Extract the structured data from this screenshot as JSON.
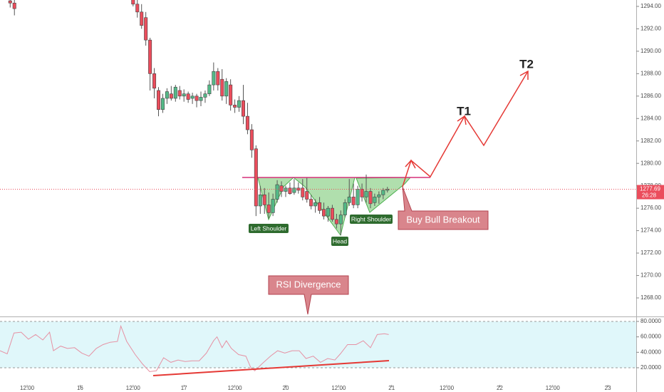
{
  "chart_data": [
    {
      "type": "candlestick",
      "x": [
        -29,
        -28,
        0,
        1,
        2,
        3,
        4,
        5,
        6,
        7,
        8,
        9,
        10,
        11,
        12,
        13,
        14,
        15,
        16,
        17,
        18,
        19,
        20,
        21,
        22,
        23,
        24,
        25,
        26,
        27,
        28,
        29,
        30,
        31,
        32,
        33,
        34,
        35,
        36,
        37,
        38,
        39,
        40,
        41,
        42,
        43,
        44,
        45,
        46,
        47,
        48,
        49,
        50,
        51,
        52,
        53,
        54,
        55,
        56,
        57,
        58,
        59,
        60
      ],
      "open": [
        1294.5,
        1294.3,
        1294.6,
        1294.2,
        1293.5,
        1293,
        1291,
        1288,
        1286.5,
        1284.8,
        1285.8,
        1286.2,
        1285.8,
        1286.5,
        1286,
        1286.2,
        1285.8,
        1286,
        1285.6,
        1285.9,
        1286.2,
        1287,
        1288.2,
        1287.5,
        1286,
        1287,
        1285.2,
        1285,
        1285.6,
        1284.2,
        1283,
        1281.3,
        1276.2,
        1277.2,
        1276.3,
        1275.6,
        1276.8,
        1278,
        1277.5,
        1277.8,
        1277.4,
        1277.8,
        1277.8,
        1277.5,
        1276.8,
        1276.2,
        1276.5,
        1275.9,
        1275.3,
        1276,
        1275,
        1274.6,
        1275.4,
        1276.5,
        1277,
        1276.3,
        1277.7,
        1277,
        1277.5,
        1276.5,
        1277,
        1277.2,
        1277.6
      ],
      "high": [
        1295,
        1294.8,
        1295,
        1294.6,
        1294.2,
        1293.5,
        1291.2,
        1288.5,
        1286.8,
        1286.2,
        1286.7,
        1286.9,
        1287,
        1286.9,
        1286.6,
        1286.4,
        1286.3,
        1286.2,
        1286.4,
        1286.5,
        1287.4,
        1289,
        1288.5,
        1288.4,
        1287.6,
        1287.5,
        1285.7,
        1286,
        1287,
        1285.4,
        1283.5,
        1281.6,
        1278,
        1277.8,
        1277.4,
        1277.3,
        1278.5,
        1278.4,
        1278,
        1278.3,
        1278.6,
        1278.3,
        1278.6,
        1278.7,
        1277.2,
        1276.8,
        1277,
        1276.5,
        1276.2,
        1276.3,
        1275.5,
        1275.8,
        1276.8,
        1278.6,
        1278.2,
        1278,
        1278.2,
        1279,
        1277.8,
        1277.3,
        1277.5,
        1277.8,
        1277.9
      ],
      "low": [
        1293.9,
        1293.2,
        1294,
        1293,
        1292,
        1290.5,
        1286.5,
        1285.8,
        1284.2,
        1284.5,
        1285.3,
        1285.6,
        1285.5,
        1285.7,
        1285.5,
        1285.4,
        1285.3,
        1285,
        1285.1,
        1285.4,
        1286,
        1286.5,
        1286.5,
        1285.6,
        1285.3,
        1284.7,
        1284.5,
        1284.6,
        1283.5,
        1282.6,
        1280.5,
        1275.3,
        1275.5,
        1275.5,
        1275.1,
        1275.3,
        1276.5,
        1277,
        1277,
        1277.2,
        1277.2,
        1277.3,
        1276.7,
        1276.5,
        1275.9,
        1275.6,
        1275.5,
        1275,
        1274.8,
        1274.8,
        1274.2,
        1273.6,
        1275.2,
        1276.2,
        1276,
        1276,
        1276.6,
        1276.5,
        1276,
        1276.2,
        1276.4,
        1276.8,
        1277.4
      ],
      "close": [
        1294.3,
        1293.8,
        1294.2,
        1293.5,
        1292.3,
        1291,
        1288,
        1286.7,
        1284.8,
        1285.8,
        1286.4,
        1285.8,
        1286.8,
        1286,
        1286.2,
        1285.7,
        1286,
        1285.6,
        1285.9,
        1286.2,
        1287,
        1288.2,
        1287,
        1286,
        1287.3,
        1285.2,
        1285,
        1285.6,
        1284.2,
        1283,
        1281.2,
        1276.2,
        1277.2,
        1276.3,
        1275.6,
        1276.8,
        1278.1,
        1277.5,
        1277.8,
        1277.3,
        1277.8,
        1277.6,
        1277,
        1276.8,
        1276.2,
        1276.5,
        1275.8,
        1275.3,
        1276,
        1275,
        1274.6,
        1275.4,
        1276.5,
        1277,
        1276.3,
        1277.7,
        1277,
        1277.5,
        1276.4,
        1277,
        1277.2,
        1277.6,
        1277.7
      ],
      "up_color": "#53b987",
      "down_color": "#eb4d5c",
      "xlim": [
        -31.4,
        118.7
      ],
      "ylim": [
        1266.41,
        1294.57
      ],
      "yticks": [
        {
          "value": 1268,
          "label": "1268.00"
        },
        {
          "value": 1270,
          "label": "1270.00"
        },
        {
          "value": 1272,
          "label": "1272.00"
        },
        {
          "value": 1274,
          "label": "1274.00"
        },
        {
          "value": 1276,
          "label": "1276.00"
        },
        {
          "value": 1278,
          "label": "1278.00"
        },
        {
          "value": 1280,
          "label": "1280.00"
        },
        {
          "value": 1282,
          "label": "1282.00"
        },
        {
          "value": 1284,
          "label": "1284.00"
        },
        {
          "value": 1286,
          "label": "1286.00"
        },
        {
          "value": 1288,
          "label": "1288.00"
        },
        {
          "value": 1290,
          "label": "1290.00"
        },
        {
          "value": 1292,
          "label": "1292.00"
        },
        {
          "value": 1294,
          "label": "1294.00"
        }
      ],
      "last_price": 1277.69,
      "countdown": "26:28",
      "annotations": {
        "left_shoulder": "Left Shoulder",
        "head": "Head",
        "right_shoulder": "Right Shoulder",
        "breakout": "Buy Bull Breakout",
        "rsi_divergence": "RSI Divergence",
        "t1": "T1",
        "t2": "T2"
      }
    },
    {
      "type": "line",
      "x": [
        -31.4,
        -29.7,
        -28.1,
        -26.4,
        -24.7,
        -23.0,
        -21.3,
        -19.7,
        -18.8,
        -17.1,
        -15.5,
        -13.8,
        -12.1,
        -10.4,
        -8.7,
        -7.1,
        -5.4,
        -3.7,
        -2.9,
        -1.5,
        0.5,
        2.2,
        3.9,
        5.5,
        7.2,
        8.9,
        10.6,
        12.3,
        13.9,
        15.6,
        17.3,
        19.0,
        19.8,
        21.0,
        22.0,
        23.2,
        24.9,
        26.6,
        27.7,
        28.7,
        30.4,
        32.4,
        34.1,
        35.8,
        37.5,
        39.2,
        40.8,
        42.5,
        44.2,
        45.9,
        47.6,
        48.9,
        50.6,
        52.6,
        54.3,
        56.0,
        57.6,
        59.3,
        60.3
      ],
      "values": [
        42,
        38,
        65,
        66,
        57,
        63,
        56,
        66,
        42,
        48,
        45,
        46,
        39,
        35,
        45,
        50,
        53,
        54,
        74,
        54,
        37,
        25,
        15,
        16,
        33,
        27,
        30,
        28,
        29,
        29,
        39,
        55,
        60,
        46,
        55,
        45,
        37,
        35,
        21,
        16,
        25,
        35,
        42,
        39,
        42,
        42,
        32,
        35,
        27,
        32,
        30,
        38,
        50,
        50,
        55,
        46,
        63,
        64,
        63
      ],
      "color": "#e691a3",
      "band": [
        20,
        80
      ],
      "band_color": "#e0f7fa",
      "xlim": [
        -31.4,
        118.7
      ],
      "ylim": [
        -2.2,
        84.6
      ],
      "yticks": [
        {
          "value": 20,
          "label": "20.0000"
        },
        {
          "value": 40,
          "label": "40.0000"
        },
        {
          "value": 60,
          "label": "60.0000"
        },
        {
          "value": 80,
          "label": "80.0000"
        }
      ],
      "xticks": [
        {
          "value": -25,
          "label": "12:00"
        },
        {
          "value": -12.5,
          "label": "16"
        },
        {
          "value": 0,
          "label": "12:00"
        },
        {
          "value": 12,
          "label": "17"
        },
        {
          "value": 24,
          "label": "12:00"
        },
        {
          "value": 36,
          "label": "20"
        },
        {
          "value": 48.5,
          "label": "12:00"
        },
        {
          "value": 61,
          "label": "21"
        },
        {
          "value": 74,
          "label": "12:00"
        },
        {
          "value": 86.5,
          "label": "22"
        },
        {
          "value": 99,
          "label": "12:00"
        },
        {
          "value": 112,
          "label": "23"
        }
      ]
    }
  ]
}
